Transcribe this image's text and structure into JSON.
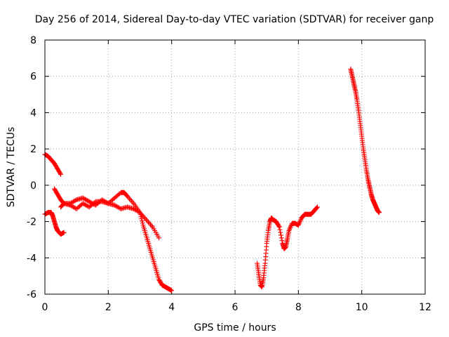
{
  "chart_data": {
    "type": "scatter",
    "title": "Day 256 of 2014, Sidereal Day-to-day VTEC variation (SDTVAR) for receiver ganp",
    "xlabel": "GPS time / hours",
    "ylabel": "SDTVAR / TECUs",
    "xlim": [
      0,
      12
    ],
    "ylim": [
      -6,
      8
    ],
    "x_ticks": [
      "0",
      "2",
      "4",
      "6",
      "8",
      "10",
      "12"
    ],
    "y_ticks": [
      "-6",
      "-4",
      "-2",
      "0",
      "2",
      "4",
      "6",
      "8"
    ],
    "x_tick_values": [
      0,
      2,
      4,
      6,
      8,
      10,
      12
    ],
    "y_tick_values": [
      -6,
      -4,
      -2,
      0,
      2,
      4,
      6,
      8
    ],
    "grid": true,
    "marker": "plus",
    "color": "#ff0000",
    "series": [
      {
        "name": "arc1",
        "x": [
          0.0,
          0.1,
          0.2,
          0.3,
          0.4,
          0.5
        ],
        "y": [
          1.7,
          1.6,
          1.4,
          1.2,
          0.9,
          0.6
        ]
      },
      {
        "name": "arc2",
        "x": [
          0.0,
          0.1,
          0.2,
          0.25,
          0.3,
          0.35,
          0.4,
          0.5,
          0.6
        ],
        "y": [
          -1.6,
          -1.5,
          -1.5,
          -1.7,
          -2.0,
          -2.3,
          -2.5,
          -2.7,
          -2.6
        ]
      },
      {
        "name": "arc3",
        "x": [
          0.3,
          0.4,
          0.5,
          0.6,
          0.8,
          1.0,
          1.2,
          1.4,
          1.6,
          1.8,
          2.0,
          2.2,
          2.4,
          2.6,
          2.8,
          3.0,
          3.2,
          3.4,
          3.6
        ],
        "y": [
          -0.2,
          -0.5,
          -0.8,
          -1.0,
          -1.0,
          -0.8,
          -0.7,
          -0.9,
          -1.1,
          -0.8,
          -1.0,
          -1.1,
          -1.3,
          -1.2,
          -1.3,
          -1.5,
          -1.9,
          -2.3,
          -2.9
        ]
      },
      {
        "name": "arc4",
        "x": [
          0.5,
          0.6,
          0.8,
          1.0,
          1.2,
          1.4,
          1.6,
          1.8,
          2.0,
          2.2,
          2.4,
          2.5,
          2.6,
          2.8,
          3.0,
          3.1,
          3.2,
          3.3,
          3.4,
          3.5,
          3.6,
          3.7,
          3.8,
          3.9,
          4.0
        ],
        "y": [
          -1.2,
          -1.0,
          -1.1,
          -1.3,
          -1.0,
          -1.2,
          -0.9,
          -0.9,
          -1.0,
          -0.7,
          -0.4,
          -0.4,
          -0.6,
          -1.0,
          -1.5,
          -2.2,
          -2.8,
          -3.4,
          -4.0,
          -4.6,
          -5.2,
          -5.5,
          -5.6,
          -5.7,
          -5.8
        ]
      },
      {
        "name": "arc5",
        "x": [
          6.7,
          6.75,
          6.8,
          6.85,
          6.9,
          6.95,
          7.0,
          7.05,
          7.1,
          7.15,
          7.2,
          7.3,
          7.4,
          7.5,
          7.55,
          7.6,
          7.65,
          7.7,
          7.8,
          7.9,
          8.0,
          8.1,
          8.2,
          8.3,
          8.4,
          8.5,
          8.6
        ],
        "y": [
          -4.3,
          -4.9,
          -5.5,
          -5.6,
          -5.1,
          -4.3,
          -3.2,
          -2.5,
          -2.0,
          -1.8,
          -1.9,
          -2.0,
          -2.3,
          -3.2,
          -3.5,
          -3.4,
          -3.0,
          -2.5,
          -2.1,
          -2.1,
          -2.2,
          -1.8,
          -1.6,
          -1.6,
          -1.6,
          -1.4,
          -1.2
        ]
      },
      {
        "name": "arc6",
        "x": [
          9.65,
          9.7,
          9.75,
          9.8,
          9.85,
          9.9,
          9.95,
          10.0,
          10.05,
          10.1,
          10.15,
          10.2,
          10.25,
          10.3,
          10.35,
          10.4,
          10.45,
          10.5,
          10.55
        ],
        "y": [
          6.4,
          6.0,
          5.6,
          5.2,
          4.7,
          4.1,
          3.4,
          2.7,
          2.0,
          1.4,
          0.8,
          0.3,
          -0.1,
          -0.5,
          -0.8,
          -1.0,
          -1.2,
          -1.4,
          -1.5
        ]
      }
    ]
  }
}
